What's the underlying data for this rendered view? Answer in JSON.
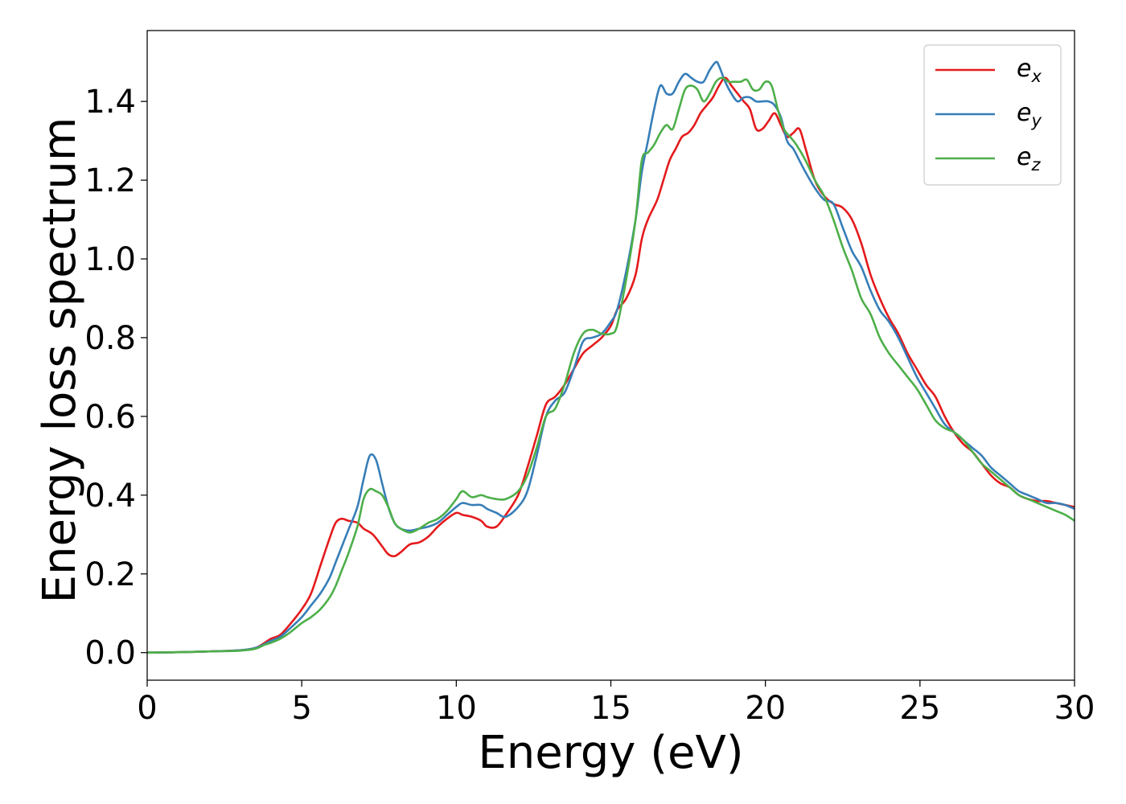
{
  "chart_data": {
    "type": "line",
    "title": "",
    "xlabel": "Energy (eV)",
    "ylabel": "Energy loss spectrum",
    "xlim": [
      0,
      30
    ],
    "ylim": [
      -0.07,
      1.58
    ],
    "xticks": [
      0,
      5,
      10,
      15,
      20,
      25,
      30
    ],
    "yticks": [
      0.0,
      0.2,
      0.4,
      0.6,
      0.8,
      1.0,
      1.2,
      1.4
    ],
    "grid": false,
    "legend_position": "top-right",
    "series": [
      {
        "name": "e_x",
        "legend_base": "e",
        "legend_sub": "x",
        "color": "#e41a1c",
        "x": [
          0,
          1,
          2,
          3,
          3.5,
          3.8,
          4.0,
          4.3,
          4.6,
          5.0,
          5.3,
          5.6,
          5.9,
          6.1,
          6.3,
          6.5,
          6.8,
          7.0,
          7.3,
          7.6,
          7.8,
          8.0,
          8.2,
          8.5,
          8.8,
          9.1,
          9.4,
          9.7,
          10.0,
          10.2,
          10.5,
          10.8,
          11.0,
          11.3,
          11.6,
          12.0,
          12.3,
          12.6,
          12.9,
          13.2,
          13.5,
          13.8,
          14.1,
          14.4,
          14.7,
          15.0,
          15.2,
          15.5,
          15.8,
          16.0,
          16.2,
          16.5,
          16.7,
          16.9,
          17.1,
          17.3,
          17.5,
          17.7,
          17.9,
          18.1,
          18.3,
          18.5,
          18.7,
          18.9,
          19.1,
          19.3,
          19.5,
          19.7,
          19.9,
          20.1,
          20.3,
          20.5,
          20.7,
          20.9,
          21.1,
          21.3,
          21.6,
          21.9,
          22.2,
          22.5,
          22.8,
          23.1,
          23.4,
          23.7,
          24.0,
          24.3,
          24.6,
          24.9,
          25.2,
          25.5,
          25.8,
          26.1,
          26.4,
          26.7,
          27.0,
          27.3,
          27.6,
          27.9,
          28.2,
          28.5,
          28.8,
          29.1,
          29.4,
          29.7,
          30.0
        ],
        "y": [
          0.0,
          0.001,
          0.003,
          0.006,
          0.012,
          0.025,
          0.035,
          0.045,
          0.07,
          0.11,
          0.15,
          0.22,
          0.29,
          0.33,
          0.34,
          0.335,
          0.33,
          0.315,
          0.3,
          0.27,
          0.25,
          0.245,
          0.255,
          0.275,
          0.28,
          0.295,
          0.32,
          0.34,
          0.355,
          0.35,
          0.345,
          0.335,
          0.32,
          0.32,
          0.35,
          0.4,
          0.47,
          0.55,
          0.63,
          0.65,
          0.68,
          0.72,
          0.76,
          0.78,
          0.8,
          0.83,
          0.87,
          0.9,
          0.96,
          1.05,
          1.1,
          1.15,
          1.2,
          1.25,
          1.28,
          1.31,
          1.32,
          1.34,
          1.37,
          1.39,
          1.41,
          1.44,
          1.46,
          1.44,
          1.42,
          1.4,
          1.38,
          1.33,
          1.33,
          1.35,
          1.37,
          1.34,
          1.31,
          1.32,
          1.33,
          1.28,
          1.2,
          1.16,
          1.14,
          1.13,
          1.1,
          1.04,
          0.96,
          0.9,
          0.85,
          0.81,
          0.76,
          0.72,
          0.68,
          0.65,
          0.6,
          0.56,
          0.53,
          0.51,
          0.48,
          0.45,
          0.43,
          0.42,
          0.4,
          0.39,
          0.385,
          0.385,
          0.38,
          0.375,
          0.37
        ]
      },
      {
        "name": "e_y",
        "legend_base": "e",
        "legend_sub": "y",
        "color": "#377eb8",
        "x": [
          0,
          1,
          2,
          3,
          3.5,
          3.8,
          4.0,
          4.3,
          4.6,
          5.0,
          5.3,
          5.6,
          5.9,
          6.1,
          6.3,
          6.5,
          6.8,
          7.0,
          7.2,
          7.4,
          7.6,
          7.8,
          8.0,
          8.2,
          8.5,
          8.8,
          9.1,
          9.4,
          9.7,
          10.0,
          10.2,
          10.5,
          10.8,
          11.0,
          11.3,
          11.6,
          12.0,
          12.3,
          12.6,
          12.9,
          13.2,
          13.5,
          13.8,
          14.1,
          14.4,
          14.7,
          15.0,
          15.2,
          15.5,
          15.8,
          16.0,
          16.2,
          16.4,
          16.6,
          16.8,
          17.0,
          17.2,
          17.4,
          17.6,
          17.8,
          18.0,
          18.2,
          18.4,
          18.5,
          18.7,
          18.9,
          19.1,
          19.3,
          19.5,
          19.7,
          19.9,
          20.1,
          20.3,
          20.5,
          20.7,
          20.9,
          21.1,
          21.3,
          21.6,
          21.9,
          22.2,
          22.5,
          22.8,
          23.1,
          23.4,
          23.7,
          24.0,
          24.3,
          24.6,
          24.9,
          25.2,
          25.5,
          25.8,
          26.1,
          26.4,
          26.7,
          27.0,
          27.3,
          27.6,
          27.9,
          28.2,
          28.5,
          28.8,
          29.1,
          29.4,
          29.7,
          30.0
        ],
        "y": [
          0.0,
          0.001,
          0.003,
          0.006,
          0.012,
          0.022,
          0.03,
          0.04,
          0.06,
          0.09,
          0.12,
          0.15,
          0.19,
          0.23,
          0.27,
          0.31,
          0.37,
          0.44,
          0.5,
          0.49,
          0.43,
          0.37,
          0.33,
          0.315,
          0.31,
          0.315,
          0.32,
          0.33,
          0.35,
          0.37,
          0.38,
          0.375,
          0.375,
          0.365,
          0.355,
          0.345,
          0.37,
          0.41,
          0.5,
          0.6,
          0.64,
          0.66,
          0.72,
          0.79,
          0.8,
          0.81,
          0.84,
          0.87,
          0.97,
          1.1,
          1.22,
          1.3,
          1.38,
          1.44,
          1.42,
          1.42,
          1.45,
          1.47,
          1.46,
          1.45,
          1.45,
          1.48,
          1.5,
          1.49,
          1.45,
          1.42,
          1.4,
          1.41,
          1.41,
          1.4,
          1.4,
          1.4,
          1.39,
          1.36,
          1.3,
          1.28,
          1.25,
          1.22,
          1.18,
          1.15,
          1.14,
          1.08,
          1.02,
          0.98,
          0.92,
          0.87,
          0.84,
          0.8,
          0.75,
          0.7,
          0.66,
          0.62,
          0.58,
          0.56,
          0.54,
          0.52,
          0.5,
          0.47,
          0.45,
          0.43,
          0.41,
          0.4,
          0.39,
          0.38,
          0.38,
          0.375,
          0.365
        ]
      },
      {
        "name": "e_z",
        "legend_base": "e",
        "legend_sub": "z",
        "color": "#4daf4a",
        "x": [
          0,
          1,
          2,
          3,
          3.5,
          3.8,
          4.0,
          4.3,
          4.6,
          5.0,
          5.3,
          5.6,
          5.9,
          6.1,
          6.3,
          6.5,
          6.8,
          7.0,
          7.2,
          7.4,
          7.6,
          7.8,
          8.0,
          8.2,
          8.5,
          8.8,
          9.1,
          9.4,
          9.7,
          10.0,
          10.2,
          10.5,
          10.8,
          11.0,
          11.3,
          11.6,
          12.0,
          12.3,
          12.6,
          12.9,
          13.2,
          13.5,
          13.8,
          14.1,
          14.4,
          14.7,
          15.0,
          15.2,
          15.5,
          15.8,
          16.0,
          16.2,
          16.4,
          16.6,
          16.8,
          17.0,
          17.2,
          17.4,
          17.6,
          17.8,
          18.0,
          18.2,
          18.4,
          18.6,
          18.8,
          19.0,
          19.2,
          19.4,
          19.6,
          19.8,
          20.0,
          20.2,
          20.4,
          20.6,
          20.8,
          21.0,
          21.3,
          21.6,
          21.9,
          22.2,
          22.5,
          22.8,
          23.1,
          23.4,
          23.7,
          24.0,
          24.3,
          24.6,
          24.9,
          25.2,
          25.5,
          25.8,
          26.1,
          26.4,
          26.7,
          27.0,
          27.3,
          27.6,
          27.9,
          28.2,
          28.5,
          28.8,
          29.1,
          29.4,
          29.7,
          30.0
        ],
        "y": [
          0.0,
          0.001,
          0.003,
          0.005,
          0.01,
          0.02,
          0.025,
          0.035,
          0.05,
          0.075,
          0.09,
          0.11,
          0.14,
          0.17,
          0.21,
          0.25,
          0.32,
          0.39,
          0.415,
          0.41,
          0.4,
          0.37,
          0.33,
          0.315,
          0.305,
          0.315,
          0.33,
          0.34,
          0.36,
          0.39,
          0.41,
          0.395,
          0.4,
          0.395,
          0.39,
          0.39,
          0.41,
          0.45,
          0.52,
          0.6,
          0.62,
          0.68,
          0.76,
          0.81,
          0.82,
          0.81,
          0.81,
          0.83,
          0.95,
          1.1,
          1.25,
          1.27,
          1.29,
          1.32,
          1.34,
          1.33,
          1.38,
          1.43,
          1.44,
          1.43,
          1.4,
          1.42,
          1.45,
          1.46,
          1.45,
          1.45,
          1.45,
          1.455,
          1.43,
          1.43,
          1.45,
          1.44,
          1.38,
          1.33,
          1.31,
          1.29,
          1.25,
          1.2,
          1.16,
          1.1,
          1.03,
          0.97,
          0.9,
          0.86,
          0.8,
          0.76,
          0.73,
          0.7,
          0.67,
          0.63,
          0.59,
          0.57,
          0.56,
          0.54,
          0.51,
          0.48,
          0.46,
          0.44,
          0.42,
          0.4,
          0.39,
          0.38,
          0.37,
          0.36,
          0.35,
          0.335
        ]
      }
    ]
  }
}
